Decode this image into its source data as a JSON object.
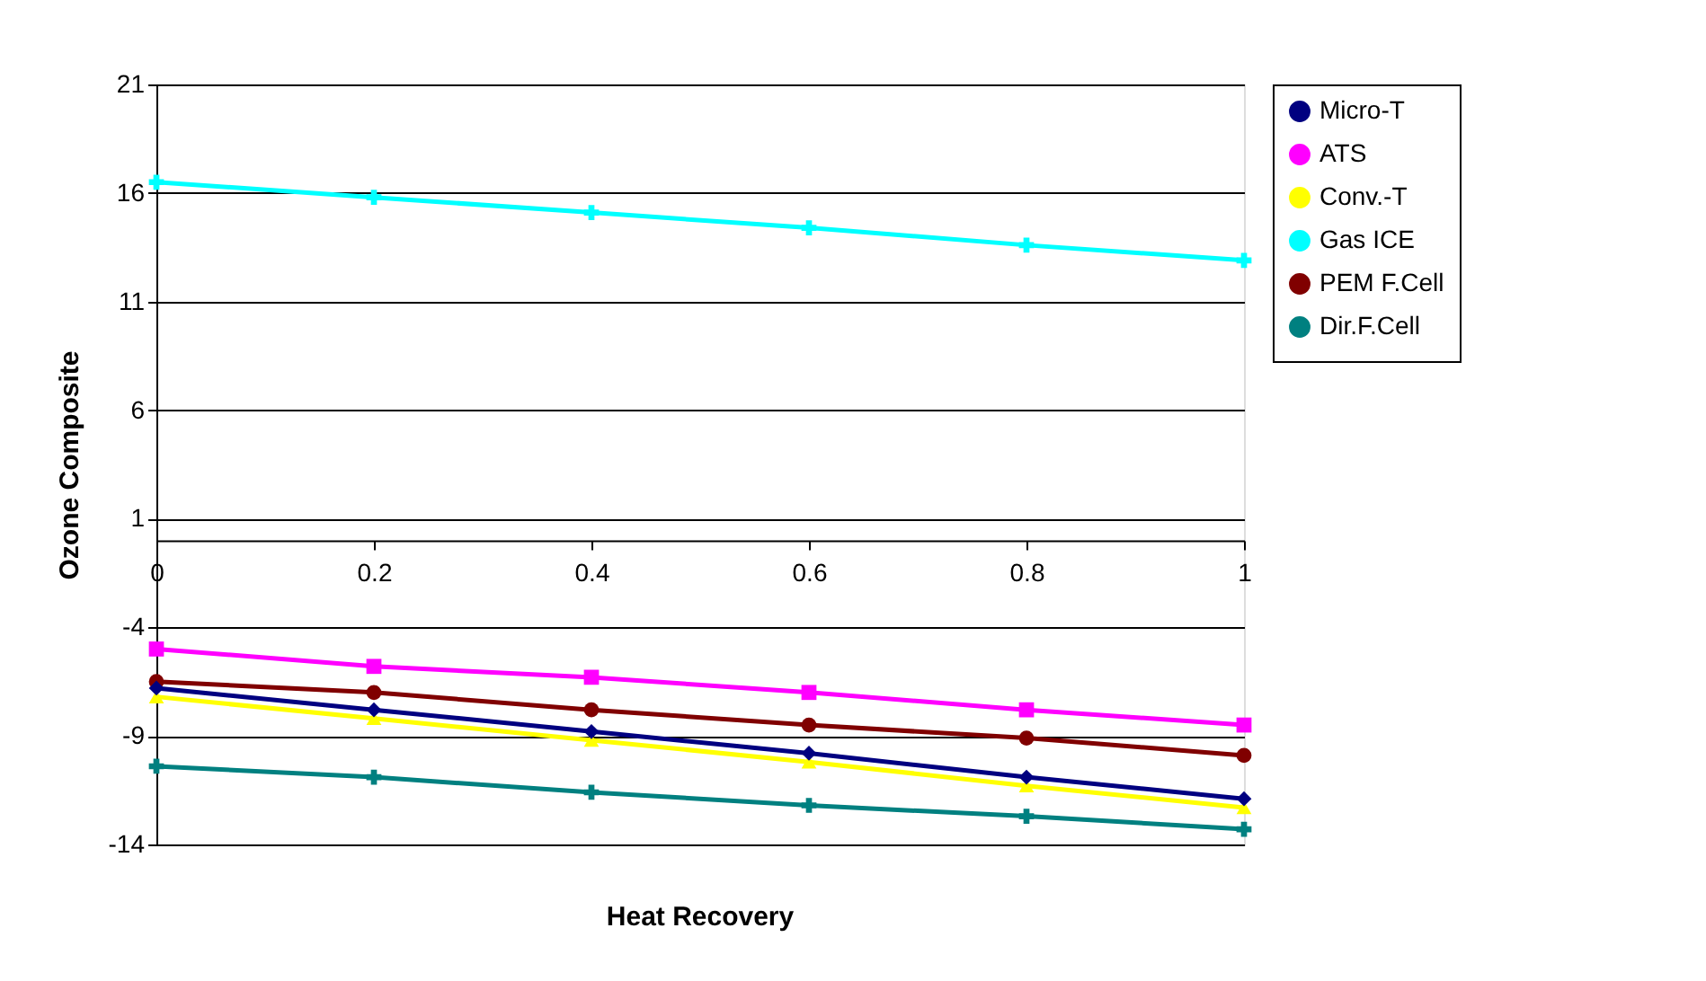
{
  "chart_data": {
    "type": "line",
    "xlabel": "Heat Recovery",
    "ylabel": "Ozone Composite",
    "x": [
      0,
      0.2,
      0.4,
      0.6,
      0.8,
      1
    ],
    "xlim": [
      0,
      1
    ],
    "xticks": [
      0,
      0.2,
      0.4,
      0.6,
      0.8,
      1
    ],
    "ylim": [
      -14,
      21
    ],
    "yticks": [
      -14,
      -9,
      -4,
      1,
      6,
      11,
      16,
      21
    ],
    "grid": "y",
    "legend": "right",
    "series": [
      {
        "name": "Micro-T",
        "color": "#000080",
        "marker": "diamond",
        "values": [
          -6.8,
          -7.8,
          -8.8,
          -9.8,
          -10.9,
          -11.9
        ]
      },
      {
        "name": "ATS",
        "color": "#ff00ff",
        "marker": "square",
        "values": [
          -5.0,
          -5.8,
          -6.3,
          -7.0,
          -7.8,
          -8.5
        ]
      },
      {
        "name": "Conv.-T",
        "color": "#ffff00",
        "marker": "triangle",
        "values": [
          -7.2,
          -8.2,
          -9.2,
          -10.2,
          -11.3,
          -12.3
        ]
      },
      {
        "name": "Gas ICE",
        "color": "#00ffff",
        "marker": "cross",
        "values": [
          16.5,
          15.8,
          15.1,
          14.4,
          13.6,
          12.9
        ]
      },
      {
        "name": "PEM F.Cell",
        "color": "#800000",
        "marker": "circle",
        "values": [
          -6.5,
          -7.0,
          -7.8,
          -8.5,
          -9.1,
          -9.9
        ]
      },
      {
        "name": "Dir.F.Cell",
        "color": "#008080",
        "marker": "cross",
        "values": [
          -10.4,
          -10.9,
          -11.6,
          -12.2,
          -12.7,
          -13.3
        ]
      }
    ]
  }
}
